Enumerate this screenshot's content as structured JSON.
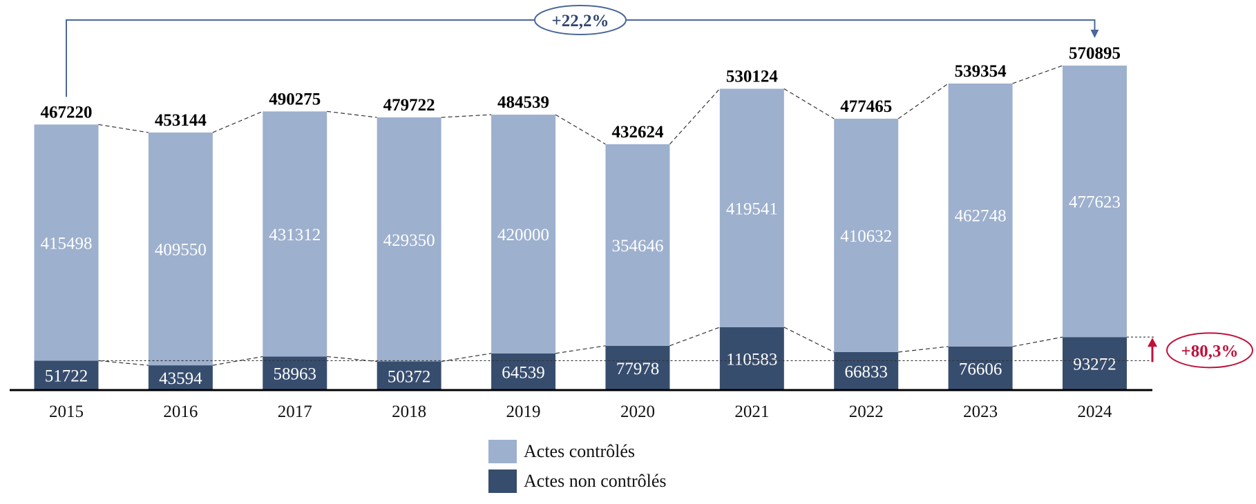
{
  "chart_data": {
    "type": "bar",
    "stacked": true,
    "categories": [
      "2015",
      "2016",
      "2017",
      "2018",
      "2019",
      "2020",
      "2021",
      "2022",
      "2023",
      "2024"
    ],
    "series": [
      {
        "name": "Actes non contrôlés",
        "color": "#374D6E",
        "values": [
          51722,
          43594,
          58963,
          50372,
          64539,
          77978,
          110583,
          66833,
          76606,
          93272
        ]
      },
      {
        "name": "Actes contrôlés",
        "color": "#9DB0CE",
        "values": [
          415498,
          409550,
          431312,
          429350,
          420000,
          354646,
          419541,
          410632,
          462748,
          477623
        ]
      }
    ],
    "totals": [
      467220,
      453144,
      490275,
      479722,
      484539,
      432624,
      530124,
      477465,
      539354,
      570895
    ],
    "ylim": [
      0,
      570895
    ],
    "grid": false,
    "legend_position": "bottom-center",
    "annotations": {
      "total_growth": {
        "label": "+22,2%",
        "color": "#4A6799",
        "from": "2015",
        "to": "2024"
      },
      "non_controlled_growth": {
        "label": "+80,3%",
        "color": "#C0103A",
        "from": "2015",
        "to": "2024"
      }
    }
  }
}
